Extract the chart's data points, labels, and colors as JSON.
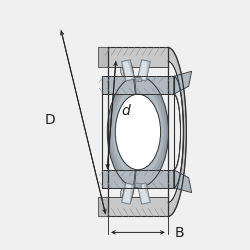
{
  "background_color": "#f0f0f0",
  "label_B": "B",
  "label_D": "D",
  "label_d": "d",
  "label_fontsize": 10,
  "figsize": [
    2.5,
    2.5
  ],
  "dpi": 100,
  "colors": {
    "outer_ring_face": "#c8c8c8",
    "outer_ring_side": "#d5d5d5",
    "inner_ring": "#b0b8c0",
    "inner_sphere": "#c8d0d8",
    "inner_sphere_light": "#e0e8f0",
    "roller": "#b8c0c8",
    "cage": "#a8b0b8",
    "line": "#303030",
    "dim": "#202020",
    "shadow": "#808890",
    "white": "#ffffff",
    "bg_fill": "#e8e8e8"
  }
}
